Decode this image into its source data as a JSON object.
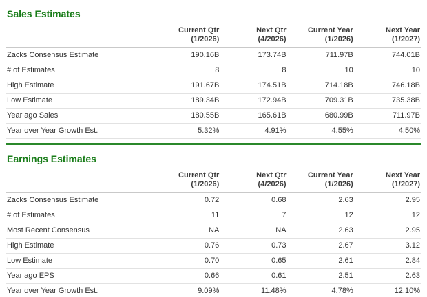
{
  "theme": {
    "accent_green": "#187c18",
    "divider_green": "#1b7a1b",
    "text_color": "#333333",
    "row_border": "#e2e2e2",
    "header_border": "#c9c9c9"
  },
  "sections": [
    {
      "title": "Sales Estimates",
      "columns": [
        {
          "label": "Current Qtr",
          "sub": "(1/2026)"
        },
        {
          "label": "Next Qtr",
          "sub": "(4/2026)"
        },
        {
          "label": "Current Year",
          "sub": "(1/2026)"
        },
        {
          "label": "Next Year",
          "sub": "(1/2027)"
        }
      ],
      "rows": [
        {
          "label": "Zacks Consensus Estimate",
          "values": [
            "190.16B",
            "173.74B",
            "711.97B",
            "744.01B"
          ]
        },
        {
          "label": "# of Estimates",
          "values": [
            "8",
            "8",
            "10",
            "10"
          ]
        },
        {
          "label": "High Estimate",
          "values": [
            "191.67B",
            "174.51B",
            "714.18B",
            "746.18B"
          ]
        },
        {
          "label": "Low Estimate",
          "values": [
            "189.34B",
            "172.94B",
            "709.31B",
            "735.38B"
          ]
        },
        {
          "label": "Year ago Sales",
          "values": [
            "180.55B",
            "165.61B",
            "680.99B",
            "711.97B"
          ]
        },
        {
          "label": "Year over Year Growth Est.",
          "values": [
            "5.32%",
            "4.91%",
            "4.55%",
            "4.50%"
          ]
        }
      ]
    },
    {
      "title": "Earnings Estimates",
      "columns": [
        {
          "label": "Current Qtr",
          "sub": "(1/2026)"
        },
        {
          "label": "Next Qtr",
          "sub": "(4/2026)"
        },
        {
          "label": "Current Year",
          "sub": "(1/2026)"
        },
        {
          "label": "Next Year",
          "sub": "(1/2027)"
        }
      ],
      "rows": [
        {
          "label": "Zacks Consensus Estimate",
          "values": [
            "0.72",
            "0.68",
            "2.63",
            "2.95"
          ]
        },
        {
          "label": "# of Estimates",
          "values": [
            "11",
            "7",
            "12",
            "12"
          ]
        },
        {
          "label": "Most Recent Consensus",
          "values": [
            "NA",
            "NA",
            "2.63",
            "2.95"
          ]
        },
        {
          "label": "High Estimate",
          "values": [
            "0.76",
            "0.73",
            "2.67",
            "3.12"
          ]
        },
        {
          "label": "Low Estimate",
          "values": [
            "0.70",
            "0.65",
            "2.61",
            "2.84"
          ]
        },
        {
          "label": "Year ago EPS",
          "values": [
            "0.66",
            "0.61",
            "2.51",
            "2.63"
          ]
        },
        {
          "label": "Year over Year Growth Est.",
          "values": [
            "9.09%",
            "11.48%",
            "4.78%",
            "12.10%"
          ]
        }
      ]
    }
  ]
}
